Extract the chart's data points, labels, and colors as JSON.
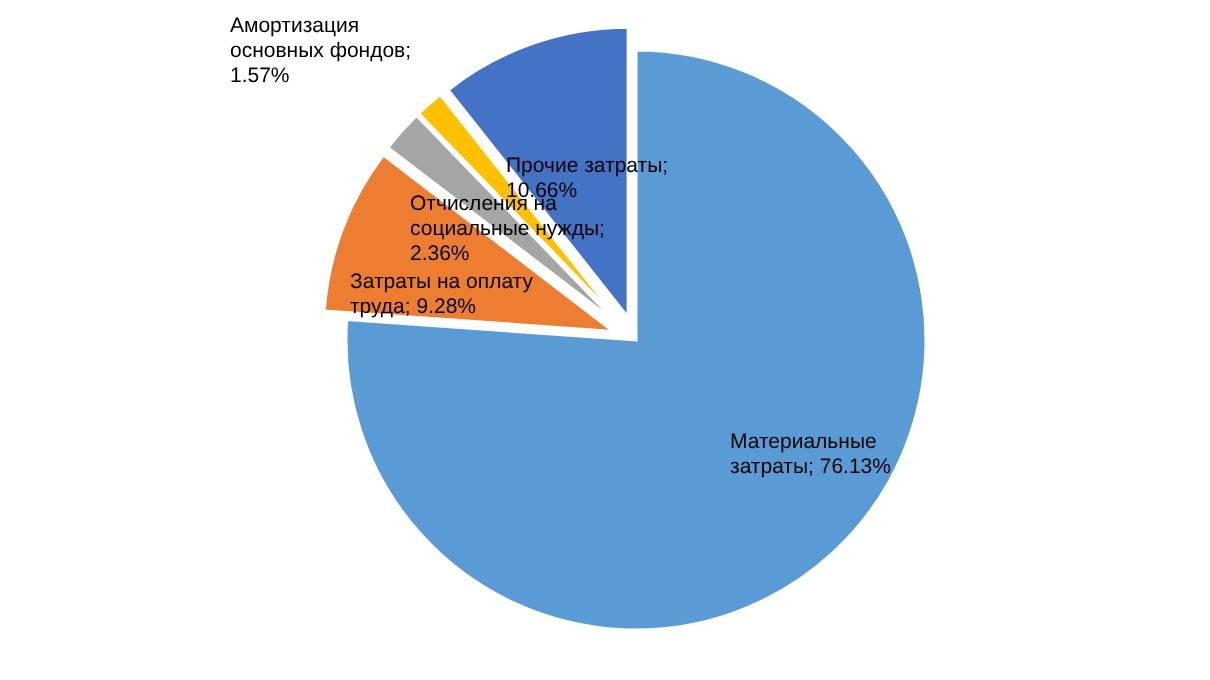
{
  "chart_data": {
    "type": "pie",
    "categories": [
      "Материальные затраты",
      "Затраты на оплату труда",
      "Отчисления на социальные нужды",
      "Амортизация основных фондов",
      "Прочие затраты"
    ],
    "values": [
      76.13,
      9.28,
      2.36,
      1.57,
      10.66
    ],
    "value_labels": [
      "; 76.13%",
      "; 9.28%",
      "; 2.36%",
      "; 1.57%",
      "; 10.66%"
    ],
    "colors": [
      "#5b9bd5",
      "#ed7d31",
      "#a5a5a5",
      "#ffc000",
      "#4472c4"
    ]
  }
}
